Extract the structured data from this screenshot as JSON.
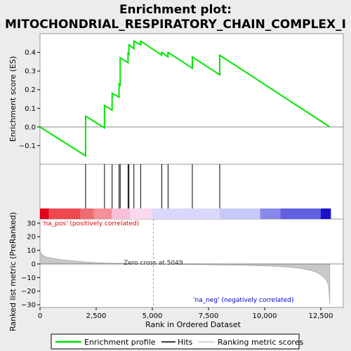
{
  "chart_data": {
    "type": "line",
    "title_line1": "Enrichment plot:",
    "title_line2": "MITOCHONDRIAL_RESPIRATORY_CHAIN_COMPLEX_I",
    "es_ylabel": "Enrichment score (ES)",
    "rank_ylabel": "Ranked list metric (PreRanked)",
    "xlabel": "Rank in Ordered Dataset",
    "xlim": [
      0,
      13500
    ],
    "x_ticks": [
      0,
      2500,
      5000,
      7500,
      10000,
      12500
    ],
    "x_tick_labels": [
      "0",
      "2,500",
      "5,000",
      "7,500",
      "10,000",
      "12,500"
    ],
    "es_ylim": [
      -0.2,
      0.5
    ],
    "es_ticks": [
      -0.1,
      0.0,
      0.1,
      0.2,
      0.3,
      0.4
    ],
    "es_tick_labels": [
      "−0.1",
      "0.0",
      "0.1",
      "0.2",
      "0.3",
      "0.4"
    ],
    "rank_ylim": [
      -32,
      33
    ],
    "rank_ticks": [
      -30,
      -20,
      -10,
      0,
      10,
      20,
      30
    ],
    "rank_tick_labels": [
      "−30",
      "−20",
      "−10",
      "0",
      "10",
      "20",
      "30"
    ],
    "hits": [
      2030,
      2870,
      3210,
      3520,
      3570,
      3920,
      3960,
      4180,
      4480,
      5420,
      5700,
      6780,
      8000
    ],
    "es_curve": {
      "x": [
        0,
        2030,
        2030,
        2870,
        2870,
        3210,
        3210,
        3520,
        3520,
        3570,
        3570,
        3920,
        3920,
        3960,
        3960,
        4180,
        4180,
        4480,
        4480,
        5420,
        5420,
        5700,
        5700,
        6780,
        6780,
        8000,
        8000,
        12900
      ],
      "y": [
        0.0,
        -0.155,
        0.058,
        -0.005,
        0.115,
        0.09,
        0.18,
        0.16,
        0.23,
        0.225,
        0.37,
        0.345,
        0.395,
        0.39,
        0.44,
        0.42,
        0.46,
        0.44,
        0.46,
        0.385,
        0.4,
        0.375,
        0.4,
        0.315,
        0.375,
        0.28,
        0.385,
        0.0
      ]
    },
    "metric_curve": {
      "x": [
        0,
        100,
        300,
        600,
        1000,
        1500,
        2000,
        2500,
        3000,
        4000,
        5049,
        6000,
        7500,
        9000,
        10000,
        11000,
        11500,
        12000,
        12300,
        12500,
        12650,
        12750,
        12850,
        12900
      ],
      "y": [
        9,
        6.5,
        5,
        4,
        3,
        2.2,
        1.5,
        1.0,
        0.6,
        0.3,
        0.0,
        -0.3,
        -0.6,
        -1.0,
        -1.4,
        -2.2,
        -3.0,
        -4.5,
        -6.0,
        -8.0,
        -10.0,
        -12.0,
        -16.0,
        -30.0
      ]
    },
    "heatmap_segments": [
      {
        "x0": 0,
        "x1": 400,
        "color": "#e6001a"
      },
      {
        "x0": 400,
        "x1": 1800,
        "color": "#f04850"
      },
      {
        "x0": 1800,
        "x1": 2400,
        "color": "#f06c74"
      },
      {
        "x0": 2400,
        "x1": 3200,
        "color": "#f49098"
      },
      {
        "x0": 3200,
        "x1": 4000,
        "color": "#f8c0d8"
      },
      {
        "x0": 4000,
        "x1": 5000,
        "color": "#fcd8f0"
      },
      {
        "x0": 5000,
        "x1": 8000,
        "color": "#d8d8fc"
      },
      {
        "x0": 8000,
        "x1": 9800,
        "color": "#c8c8f8"
      },
      {
        "x0": 9800,
        "x1": 10700,
        "color": "#8888ec"
      },
      {
        "x0": 10700,
        "x1": 12500,
        "color": "#6060e0"
      },
      {
        "x0": 12500,
        "x1": 12950,
        "color": "#1c10c8"
      }
    ],
    "zero_cross_rank": 5049,
    "zero_cross_label": "Zero cross at 5049",
    "pos_label": "'na_pos' (positively correlated)",
    "neg_label": "'na_neg' (negatively correlated)",
    "colors": {
      "es_line": "#00e600",
      "metric_fill": "#c8c8c8",
      "pos_label": "#e00000",
      "neg_label": "#0000d0",
      "hit_line": "#000000"
    },
    "legend": [
      {
        "label": "Enrichment profile",
        "kind": "line",
        "color": "#00e600"
      },
      {
        "label": "Hits",
        "kind": "line",
        "color": "#000000"
      },
      {
        "label": "Ranking metric scores",
        "kind": "line",
        "color": "#c8c8c8"
      }
    ]
  }
}
